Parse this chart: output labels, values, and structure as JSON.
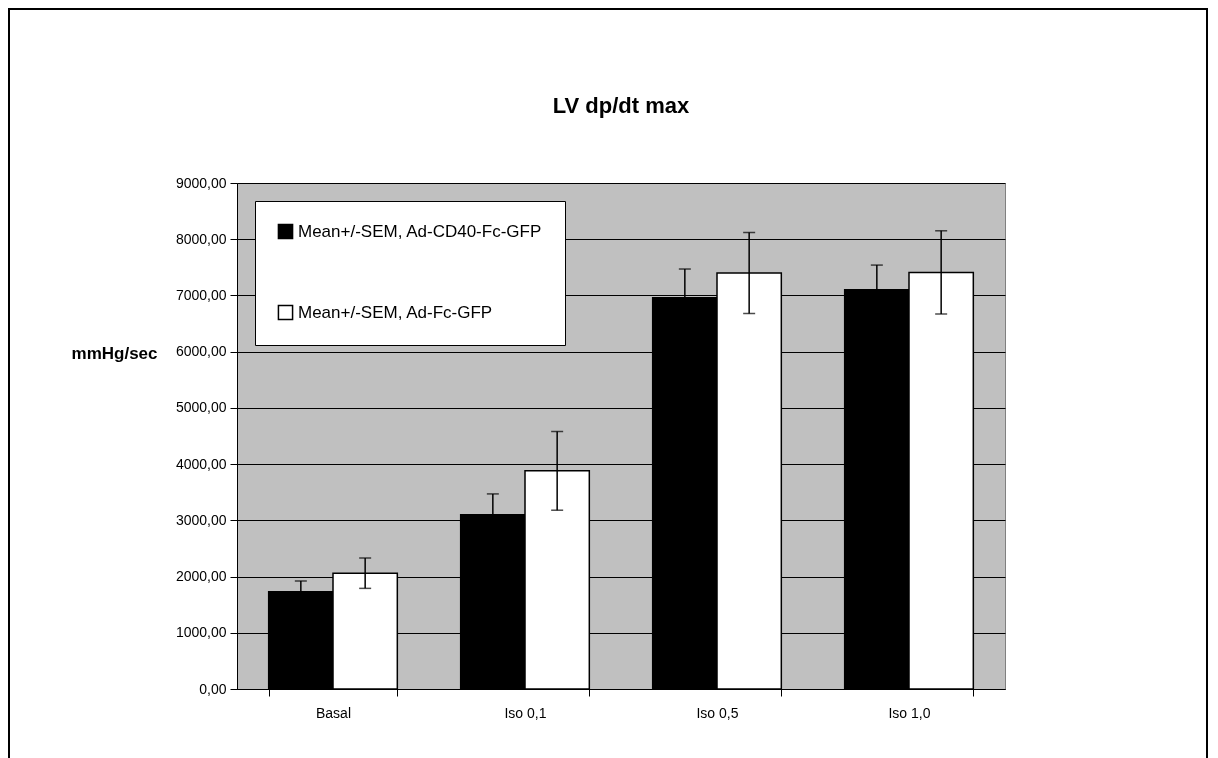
{
  "chart_data": {
    "type": "bar",
    "title": "LV dp/dt max",
    "ylabel": "mmHg/sec",
    "categories": [
      "Basal",
      "Iso 0,1",
      "Iso 0,5",
      "Iso 1,0"
    ],
    "series": [
      {
        "name": "Mean+/-SEM, Ad-CD40-Fc-GFP",
        "color": "#000000",
        "values": [
          1730,
          3100,
          6960,
          7100
        ],
        "errors": [
          190,
          370,
          510,
          440
        ]
      },
      {
        "name": "Mean+/-SEM, Ad-Fc-GFP",
        "color": "#ffffff",
        "values": [
          2060,
          3880,
          7400,
          7410
        ],
        "errors": [
          270,
          700,
          720,
          740
        ]
      }
    ],
    "ylim": [
      0,
      9000
    ],
    "yticks": [
      {
        "value": 0,
        "label": "0,00"
      },
      {
        "value": 1000,
        "label": "1000,00"
      },
      {
        "value": 2000,
        "label": "2000,00"
      },
      {
        "value": 3000,
        "label": "3000,00"
      },
      {
        "value": 4000,
        "label": "4000,00"
      },
      {
        "value": 5000,
        "label": "5000,00"
      },
      {
        "value": 6000,
        "label": "6000,00"
      },
      {
        "value": 7000,
        "label": "7000,00"
      },
      {
        "value": 8000,
        "label": "8000,00"
      },
      {
        "value": 9000,
        "label": "9000,00"
      }
    ],
    "grid": "y",
    "legend": "top left"
  }
}
